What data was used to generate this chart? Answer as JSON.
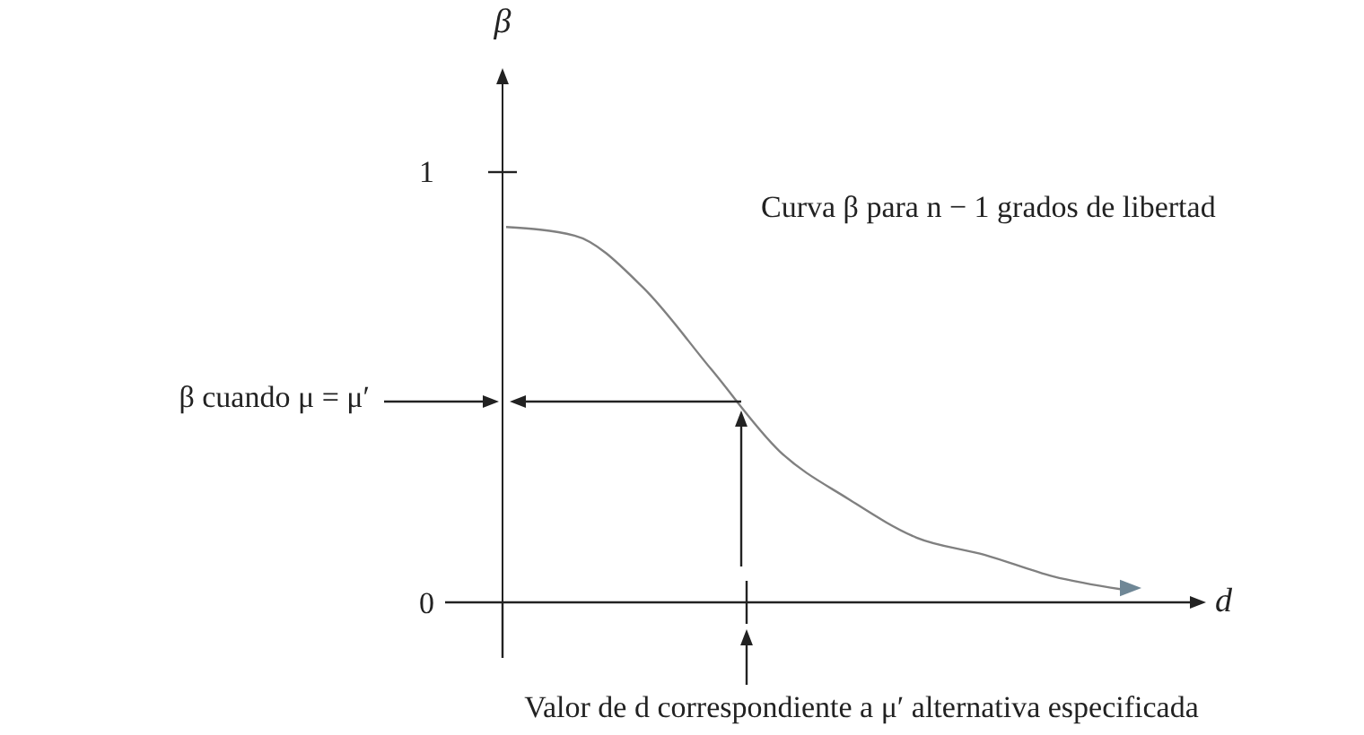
{
  "chart_data": {
    "type": "line",
    "xlabel": "d",
    "ylabel": "β",
    "categories": [
      null,
      null,
      null,
      null,
      null,
      null,
      null,
      null,
      null,
      null
    ],
    "values": [
      0.87,
      0.85,
      0.73,
      0.54,
      0.35,
      0.24,
      0.15,
      0.11,
      0.06,
      0.03
    ],
    "color": "#808080",
    "ylim": [
      0,
      1.23
    ],
    "yticks": [
      0,
      1
    ],
    "tick_labels": "y",
    "annotations": [
      "Curva β  para n − 1 grados de libertad",
      "β cuando μ = μ′",
      "Valor de d correspondiente a μ′ alternativa especificada"
    ]
  }
}
